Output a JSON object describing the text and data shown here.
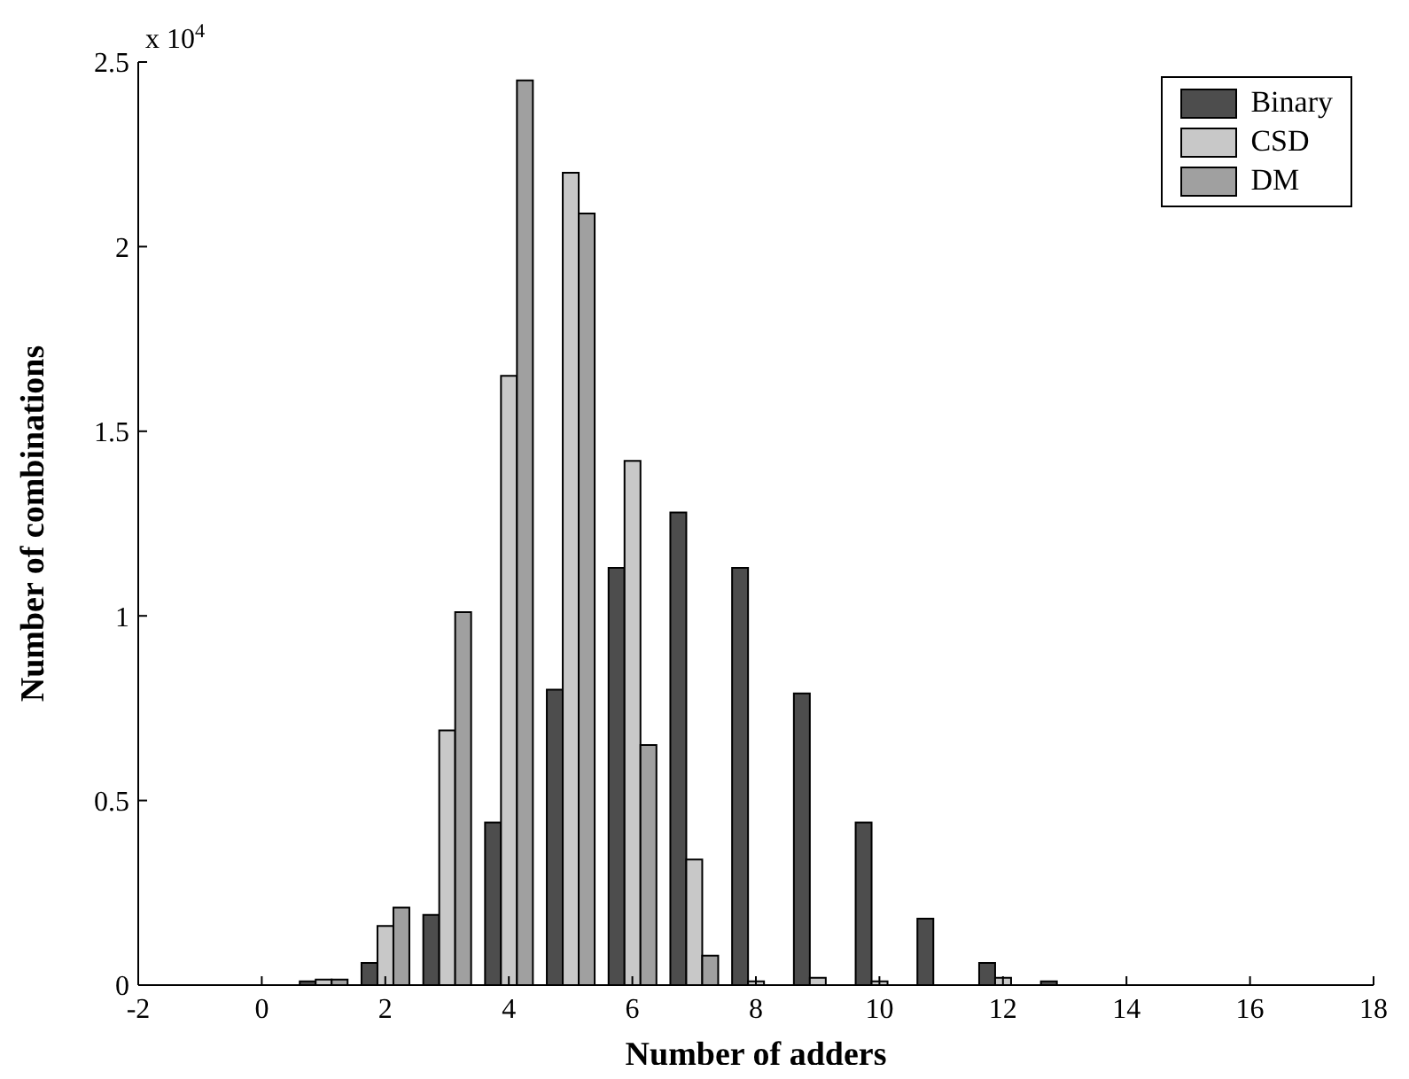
{
  "chart_data": {
    "type": "bar",
    "xlabel": "Number of adders",
    "ylabel": "Number of combinations",
    "annotations": [
      "x 10$^{4}$"
    ],
    "x": [
      1,
      2,
      3,
      4,
      5,
      6,
      7,
      8,
      9,
      10,
      11,
      12,
      13
    ],
    "series": [
      {
        "name": "Binary",
        "color": "#4d4d4d",
        "values": [
          0.01,
          0.06,
          0.19,
          0.44,
          0.8,
          1.13,
          1.28,
          1.13,
          0.79,
          0.44,
          0.18,
          0.06,
          0.01
        ]
      },
      {
        "name": "CSD",
        "color": "#c8c8c8",
        "values": [
          0.015,
          0.16,
          0.69,
          1.65,
          2.2,
          1.42,
          0.34,
          0.01,
          0.02,
          0.01,
          null,
          0.02,
          null
        ]
      },
      {
        "name": "DM",
        "color": "#a0a0a0",
        "values": [
          0.015,
          0.21,
          1.01,
          2.45,
          2.09,
          0.65,
          0.08,
          null,
          null,
          null,
          null,
          null,
          null
        ]
      }
    ],
    "xlim": [
      -2,
      18
    ],
    "xticks": [
      -2,
      0,
      2,
      4,
      6,
      8,
      10,
      12,
      14,
      16,
      18
    ],
    "ylim": [
      0,
      2.5
    ],
    "yticks": [
      0,
      0.5,
      1,
      1.5,
      2,
      2.5
    ],
    "grid": false,
    "legend": "top right"
  }
}
